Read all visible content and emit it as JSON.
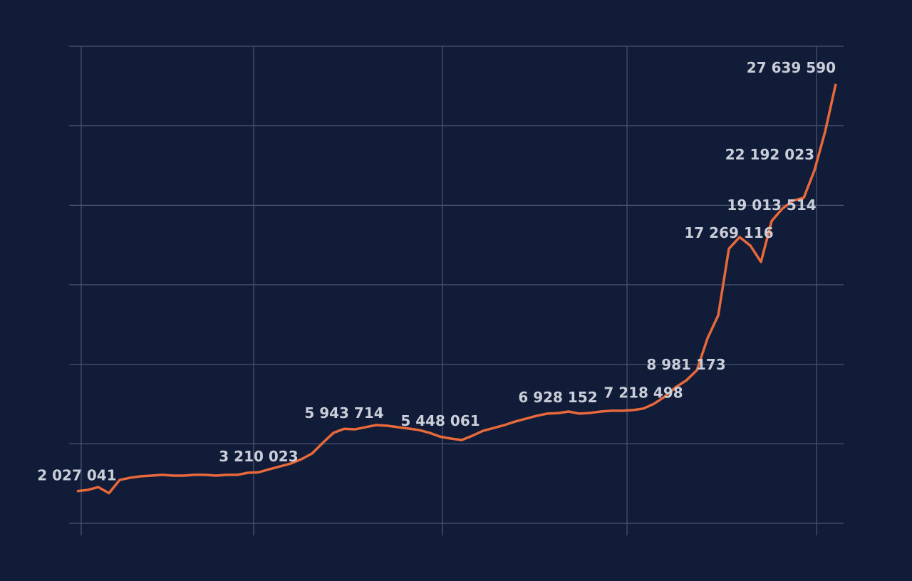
{
  "chart_data": {
    "type": "line",
    "x": [
      0,
      1,
      2,
      3,
      4,
      5,
      6,
      7,
      8,
      9,
      10,
      11,
      12,
      13,
      14,
      15,
      16,
      17,
      18,
      19,
      20,
      21,
      22,
      23,
      24,
      25,
      26,
      27,
      28,
      29,
      30,
      31,
      32,
      33,
      34,
      35,
      36,
      37,
      38,
      39,
      40,
      41,
      42,
      43,
      44,
      45,
      46,
      47,
      48,
      49,
      50,
      51,
      52,
      53,
      54,
      55,
      56,
      57,
      58,
      59,
      60,
      61,
      62,
      63,
      64,
      65,
      66,
      67,
      68,
      69,
      70,
      71
    ],
    "series": [
      {
        "color": "#e8693a",
        "values": [
          2027041,
          2100000,
          2280000,
          1900000,
          2730000,
          2870000,
          2960000,
          3000000,
          3050000,
          3000000,
          3000000,
          3050000,
          3050000,
          3000000,
          3050000,
          3050000,
          3180000,
          3210023,
          3400000,
          3580000,
          3760000,
          4030000,
          4390000,
          5060000,
          5690000,
          5943714,
          5910000,
          6050000,
          6180000,
          6140000,
          6050000,
          5960000,
          5870000,
          5690000,
          5448061,
          5330000,
          5240000,
          5510000,
          5820000,
          6000000,
          6180000,
          6400000,
          6580000,
          6760000,
          6900000,
          6928152,
          7030000,
          6900000,
          6940000,
          7030000,
          7080000,
          7080000,
          7120000,
          7218498,
          7520000,
          7970000,
          8550000,
          8981173,
          9630000,
          11640000,
          13080000,
          17269116,
          18000000,
          17470000,
          16440000,
          19013514,
          19790000,
          20290000,
          20470000,
          22192023,
          24630000,
          27639590
        ],
        "value_labels": [
          "2 027 041",
          null,
          null,
          null,
          null,
          null,
          null,
          null,
          null,
          null,
          null,
          null,
          null,
          null,
          null,
          null,
          null,
          "3 210 023",
          null,
          null,
          null,
          null,
          null,
          null,
          null,
          "5 943 714",
          null,
          null,
          null,
          null,
          null,
          null,
          null,
          null,
          "5 448 061",
          null,
          null,
          null,
          null,
          null,
          null,
          null,
          null,
          null,
          null,
          "6 928 152",
          null,
          null,
          null,
          null,
          null,
          null,
          null,
          "7 218 498",
          null,
          null,
          null,
          "8 981 173",
          null,
          null,
          null,
          "17 269 116",
          null,
          null,
          null,
          "19 013 514",
          null,
          null,
          null,
          "22 192 023",
          null,
          "27 639 590"
        ]
      }
    ],
    "xlim": [
      -0.73,
      71.73
    ],
    "xticks": [
      0.4,
      16.53,
      34.2,
      51.47,
      69.2
    ],
    "ylim": [
      -760000,
      30000000
    ],
    "yticks": [
      0,
      5000000,
      10000000,
      15000000,
      20000000,
      25000000,
      30000000
    ],
    "grid": true
  }
}
